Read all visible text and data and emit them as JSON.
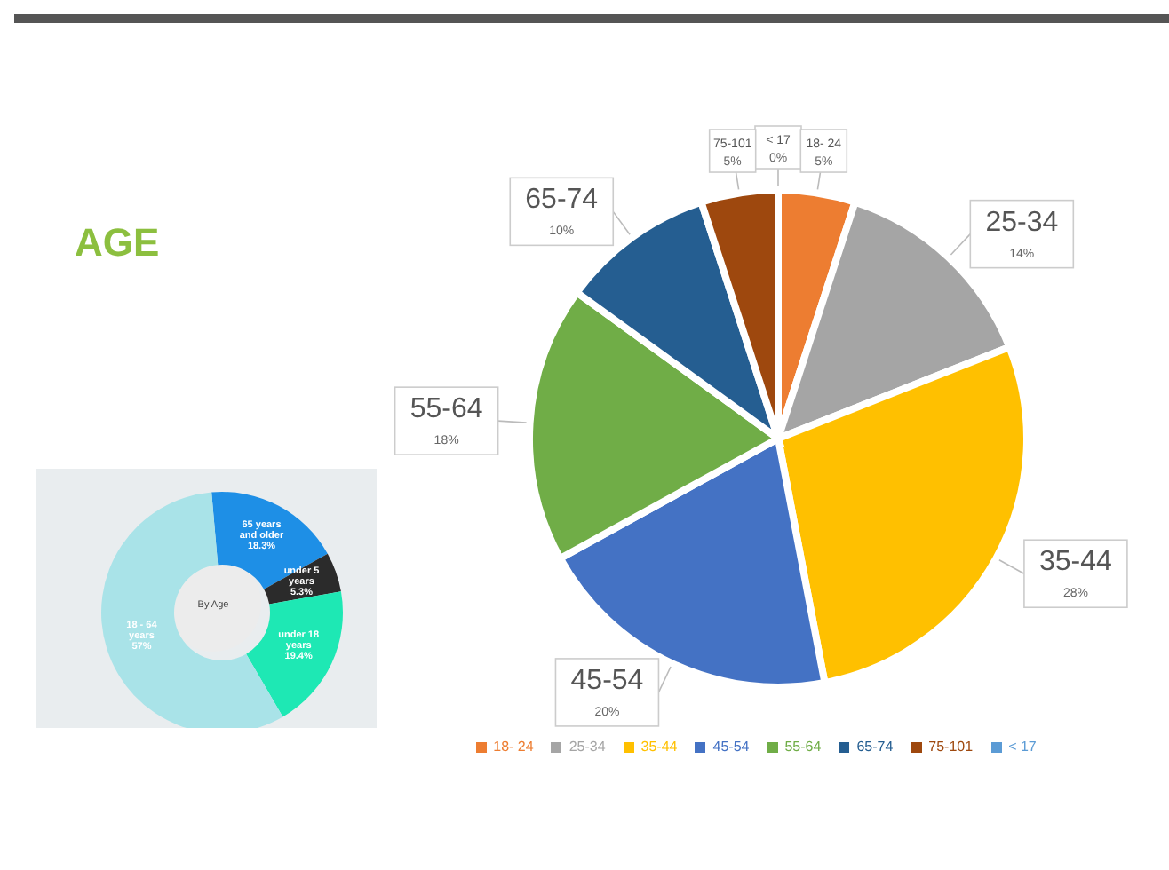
{
  "chart_data": [
    {
      "type": "pie",
      "title": "AGE",
      "categories": [
        "< 17",
        "18- 24",
        "25-34",
        "35-44",
        "45-54",
        "55-64",
        "65-74",
        "75-101"
      ],
      "values": [
        0,
        5,
        14,
        28,
        20,
        18,
        10,
        5
      ],
      "colors": [
        "#5b9bd5",
        "#ed7d31",
        "#a5a5a5",
        "#ffc000",
        "#4472c4",
        "#70ad47",
        "#255e91",
        "#9e480e"
      ],
      "value_labels": [
        "0%",
        "5%",
        "14%",
        "28%",
        "20%",
        "18%",
        "10%",
        "5%"
      ],
      "legend": "bottom"
    },
    {
      "type": "donut",
      "title": "By Age",
      "categories": [
        "65 years and older",
        "under 5 years",
        "under 18 years",
        "18 - 64 years"
      ],
      "values": [
        18.3,
        5.3,
        19.4,
        57
      ],
      "colors": [
        "#1e8fe6",
        "#2b2b2b",
        "#1ee8b4",
        "#a9e3e8"
      ],
      "value_labels": [
        "18.3%",
        "5.3%",
        "19.4%",
        "57%"
      ]
    }
  ]
}
